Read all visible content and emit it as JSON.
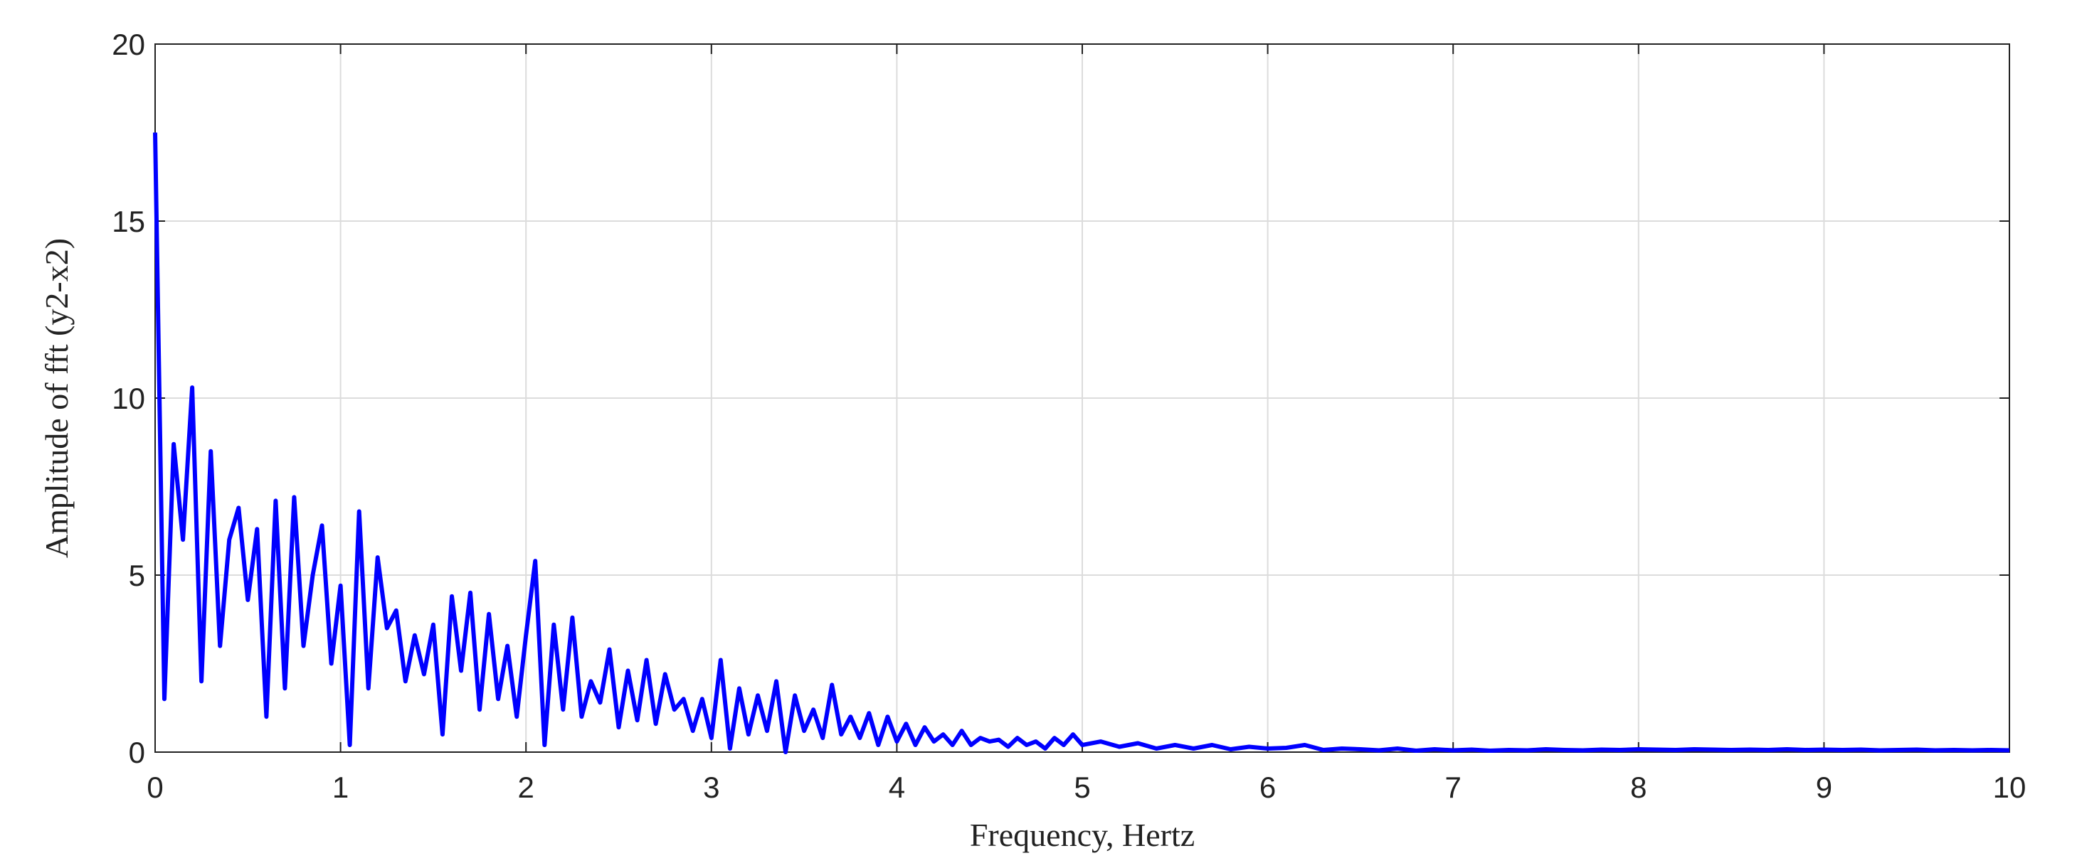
{
  "chart_data": {
    "type": "line",
    "xlabel": "Frequency, Hertz",
    "ylabel": "Amplitude of fft  (y2-x2)",
    "color": "#0000ff",
    "xlim": [
      0,
      10
    ],
    "xticks": [
      0,
      1,
      2,
      3,
      4,
      5,
      6,
      7,
      8,
      9,
      10
    ],
    "ylim": [
      0,
      20
    ],
    "yticks": [
      0,
      5,
      10,
      15,
      20
    ],
    "grid": true,
    "x": [
      0,
      0.05,
      0.1,
      0.15,
      0.2,
      0.25,
      0.3,
      0.35,
      0.4,
      0.45,
      0.5,
      0.55,
      0.6,
      0.65,
      0.7,
      0.75,
      0.8,
      0.85,
      0.9,
      0.95,
      1,
      1.05,
      1.1,
      1.15,
      1.2,
      1.25,
      1.3,
      1.35,
      1.4,
      1.45,
      1.5,
      1.55,
      1.6,
      1.65,
      1.7,
      1.75,
      1.8,
      1.85,
      1.9,
      1.95,
      2,
      2.05,
      2.1,
      2.15,
      2.2,
      2.25,
      2.3,
      2.35,
      2.4,
      2.45,
      2.5,
      2.55,
      2.6,
      2.65,
      2.7,
      2.75,
      2.8,
      2.85,
      2.9,
      2.95,
      3,
      3.05,
      3.1,
      3.15,
      3.2,
      3.25,
      3.3,
      3.35,
      3.4,
      3.45,
      3.5,
      3.55,
      3.6,
      3.65,
      3.7,
      3.75,
      3.8,
      3.85,
      3.9,
      3.95,
      4,
      4.05,
      4.1,
      4.15,
      4.2,
      4.25,
      4.3,
      4.35,
      4.4,
      4.45,
      4.5,
      4.55,
      4.6,
      4.65,
      4.7,
      4.75,
      4.8,
      4.85,
      4.9,
      4.95,
      5,
      5.1,
      5.2,
      5.3,
      5.4,
      5.5,
      5.6,
      5.7,
      5.8,
      5.9,
      6,
      6.1,
      6.2,
      6.3,
      6.4,
      6.5,
      6.6,
      6.7,
      6.8,
      6.9,
      7,
      7.1,
      7.2,
      7.3,
      7.4,
      7.5,
      7.6,
      7.7,
      7.8,
      7.9,
      8,
      8.1,
      8.2,
      8.3,
      8.4,
      8.5,
      8.6,
      8.7,
      8.8,
      8.9,
      9,
      9.1,
      9.2,
      9.3,
      9.4,
      9.5,
      9.6,
      9.7,
      9.8,
      9.9,
      10
    ],
    "values": [
      17.5,
      1.5,
      8.7,
      6.0,
      10.3,
      2.0,
      8.5,
      3.0,
      6.0,
      6.9,
      4.3,
      6.3,
      1.0,
      7.1,
      1.8,
      7.2,
      3.0,
      5.0,
      6.4,
      2.5,
      4.7,
      0.2,
      6.8,
      1.8,
      5.5,
      3.5,
      4.0,
      2.0,
      3.3,
      2.2,
      3.6,
      0.5,
      4.4,
      2.3,
      4.5,
      1.2,
      3.9,
      1.5,
      3.0,
      1.0,
      3.3,
      5.4,
      0.2,
      3.6,
      1.2,
      3.8,
      1.0,
      2.0,
      1.4,
      2.9,
      0.7,
      2.3,
      0.9,
      2.6,
      0.8,
      2.2,
      1.2,
      1.5,
      0.6,
      1.5,
      0.4,
      2.6,
      0.1,
      1.8,
      0.5,
      1.6,
      0.6,
      2.0,
      0.0,
      1.6,
      0.6,
      1.2,
      0.4,
      1.9,
      0.5,
      1.0,
      0.4,
      1.1,
      0.2,
      1.0,
      0.3,
      0.8,
      0.2,
      0.7,
      0.3,
      0.5,
      0.2,
      0.6,
      0.2,
      0.4,
      0.3,
      0.35,
      0.15,
      0.4,
      0.2,
      0.3,
      0.1,
      0.4,
      0.2,
      0.5,
      0.2,
      0.3,
      0.15,
      0.25,
      0.1,
      0.2,
      0.1,
      0.2,
      0.08,
      0.15,
      0.1,
      0.12,
      0.2,
      0.06,
      0.1,
      0.08,
      0.05,
      0.1,
      0.04,
      0.08,
      0.05,
      0.07,
      0.04,
      0.06,
      0.05,
      0.08,
      0.06,
      0.05,
      0.07,
      0.06,
      0.08,
      0.07,
      0.06,
      0.08,
      0.07,
      0.06,
      0.07,
      0.06,
      0.08,
      0.06,
      0.07,
      0.06,
      0.07,
      0.05,
      0.06,
      0.07,
      0.05,
      0.06,
      0.05,
      0.06,
      0.05
    ]
  }
}
